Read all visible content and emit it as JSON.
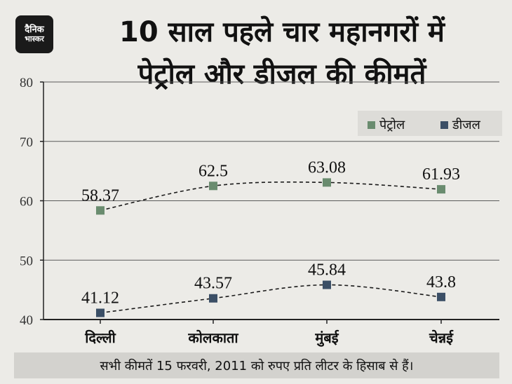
{
  "brand": {
    "logo_line1": "दैनिक",
    "logo_line2": "भास्कर"
  },
  "title_line1": "10 साल पहले चार महानगरों में",
  "title_line2": "पेट्रोल और डीजल की कीमतें",
  "footnote": "सभी कीमतें 15 फरवरी, 2011 को रुपए प्रति लीटर के हिसाब से हैं।",
  "chart_data": {
    "type": "line",
    "title": "10 साल पहले चार महानगरों में पेट्रोल और डीजल की कीमतें",
    "categories": [
      "दिल्ली",
      "कोलकाता",
      "मुंबई",
      "चेन्नई"
    ],
    "series": [
      {
        "name": "पेट्रोल",
        "values": [
          58.37,
          62.5,
          63.08,
          61.93
        ],
        "color": "#6a8c6f"
      },
      {
        "name": "डीजल",
        "values": [
          41.12,
          43.57,
          45.84,
          43.8
        ],
        "color": "#3b4f66"
      }
    ],
    "value_labels": [
      [
        "58.37",
        "62.5",
        "63.08",
        "61.93"
      ],
      [
        "41.12",
        "43.57",
        "45.84",
        "43.8"
      ]
    ],
    "ylim": [
      40,
      80
    ],
    "yticks": [
      40,
      50,
      60,
      70,
      80
    ],
    "grid": true,
    "line_style": "dashed",
    "legend_position": "top-right"
  }
}
